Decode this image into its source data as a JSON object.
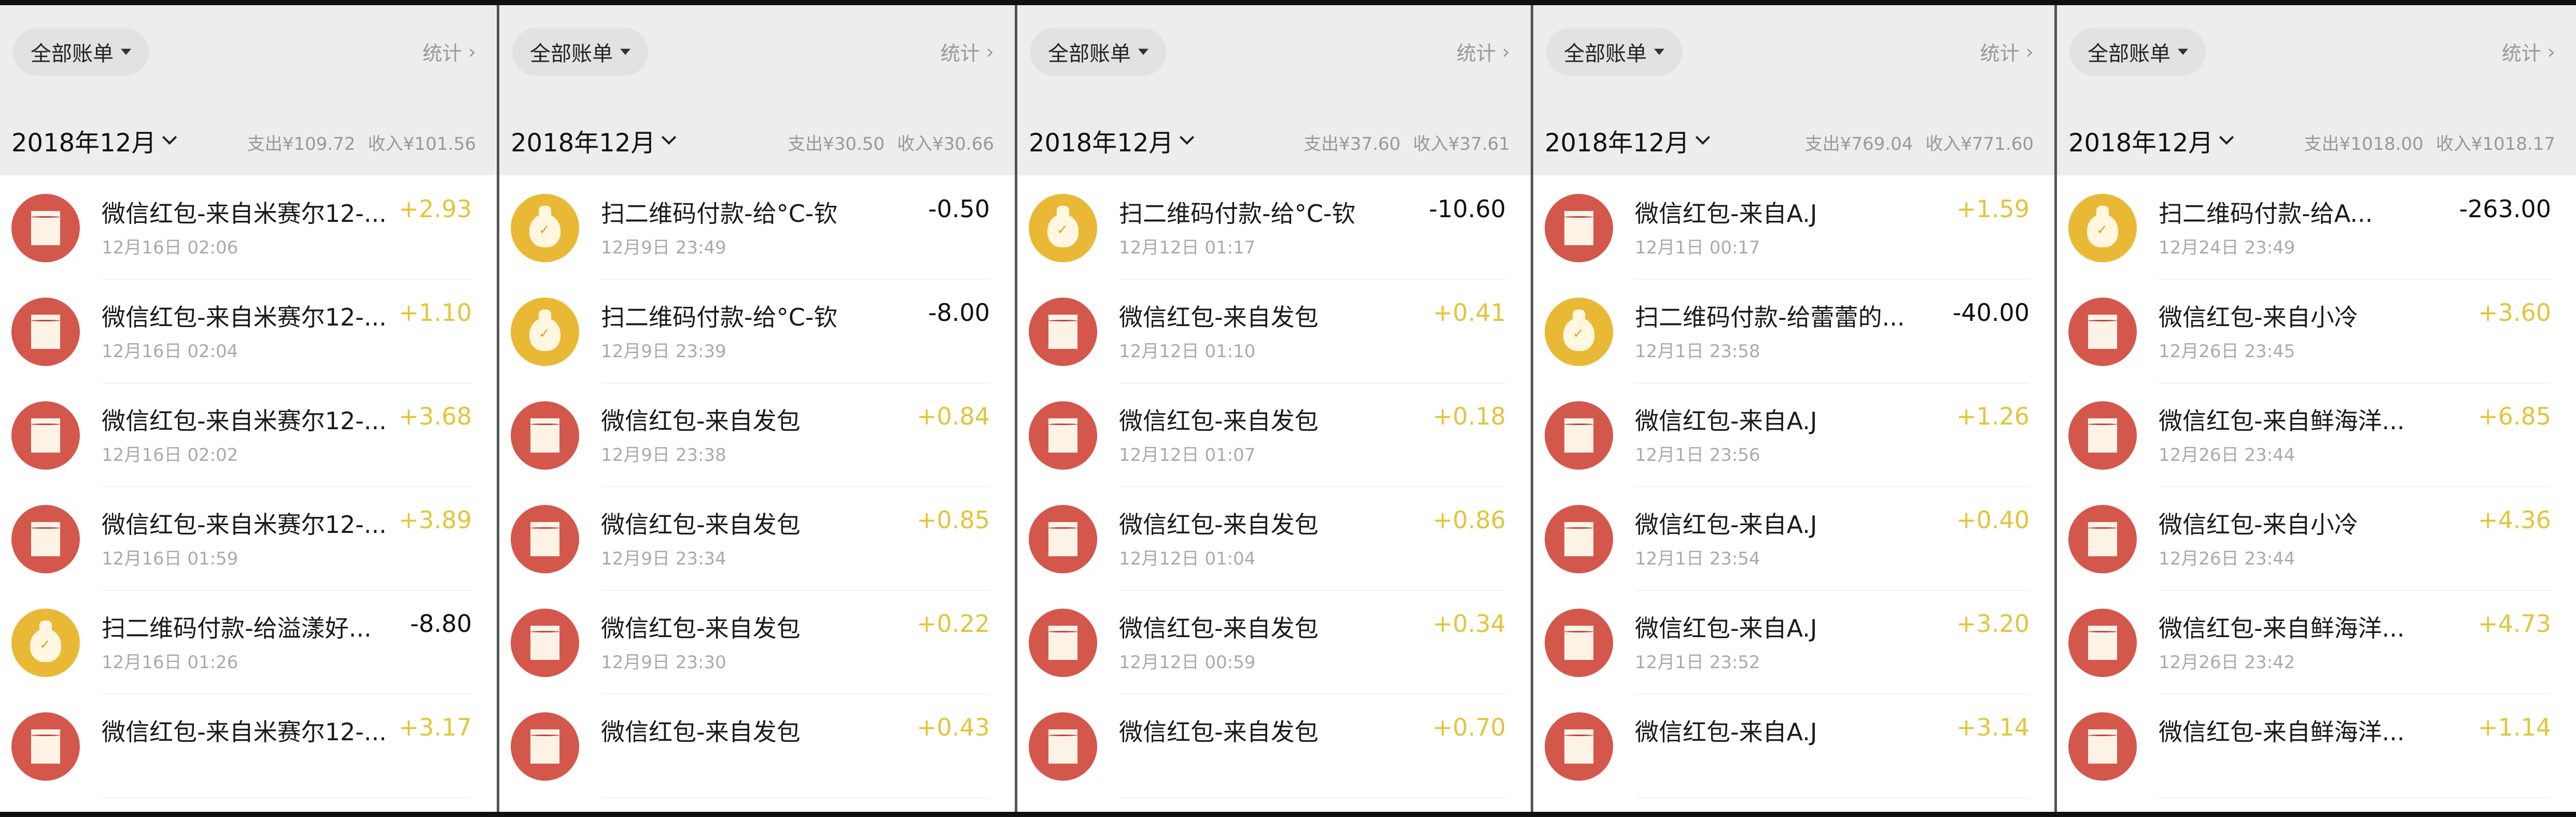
{
  "colors": {
    "red_packet": "#d4574c",
    "qr_payment": "#e9b936",
    "income": "#e3c53a",
    "expense": "#111111",
    "header_bg": "#ededed"
  },
  "panels": [
    {
      "filter_label": "全部账单",
      "stats_label": "统计",
      "month": "2018年12月",
      "expense": "支出¥109.72",
      "income": "收入¥101.56",
      "rows": [
        {
          "type": "red",
          "icon": "red-packet-icon",
          "title": "微信红包-来自米赛尔12-...",
          "date": "12月16日 02:06",
          "amount": "+2.93",
          "dir": "in"
        },
        {
          "type": "red",
          "icon": "red-packet-icon",
          "title": "微信红包-来自米赛尔12-...",
          "date": "12月16日 02:04",
          "amount": "+1.10",
          "dir": "in"
        },
        {
          "type": "red",
          "icon": "red-packet-icon",
          "title": "微信红包-来自米赛尔12-...",
          "date": "12月16日 02:02",
          "amount": "+3.68",
          "dir": "in"
        },
        {
          "type": "red",
          "icon": "red-packet-icon",
          "title": "微信红包-来自米赛尔12-...",
          "date": "12月16日 01:59",
          "amount": "+3.89",
          "dir": "in"
        },
        {
          "type": "yellow",
          "icon": "money-bag-icon",
          "title": "扫二维码付款-给溢漾好...",
          "date": "12月16日 01:26",
          "amount": "-8.80",
          "dir": "out"
        },
        {
          "type": "red",
          "icon": "red-packet-icon",
          "title": "微信红包-来自米赛尔12-...",
          "date": "",
          "amount": "+3.17",
          "dir": "in"
        }
      ]
    },
    {
      "filter_label": "全部账单",
      "stats_label": "统计",
      "month": "2018年12月",
      "expense": "支出¥30.50",
      "income": "收入¥30.66",
      "rows": [
        {
          "type": "yellow",
          "icon": "money-bag-icon",
          "title": "扫二维码付款-给°C-钦",
          "date": "12月9日 23:49",
          "amount": "-0.50",
          "dir": "out"
        },
        {
          "type": "yellow",
          "icon": "money-bag-icon",
          "title": "扫二维码付款-给°C-钦",
          "date": "12月9日 23:39",
          "amount": "-8.00",
          "dir": "out"
        },
        {
          "type": "red",
          "icon": "red-packet-icon",
          "title": "微信红包-来自发包",
          "date": "12月9日 23:38",
          "amount": "+0.84",
          "dir": "in"
        },
        {
          "type": "red",
          "icon": "red-packet-icon",
          "title": "微信红包-来自发包",
          "date": "12月9日 23:34",
          "amount": "+0.85",
          "dir": "in"
        },
        {
          "type": "red",
          "icon": "red-packet-icon",
          "title": "微信红包-来自发包",
          "date": "12月9日 23:30",
          "amount": "+0.22",
          "dir": "in"
        },
        {
          "type": "red",
          "icon": "red-packet-icon",
          "title": "微信红包-来自发包",
          "date": "",
          "amount": "+0.43",
          "dir": "in"
        }
      ]
    },
    {
      "filter_label": "全部账单",
      "stats_label": "统计",
      "month": "2018年12月",
      "expense": "支出¥37.60",
      "income": "收入¥37.61",
      "rows": [
        {
          "type": "yellow",
          "icon": "money-bag-icon",
          "title": "扫二维码付款-给°C-钦",
          "date": "12月12日 01:17",
          "amount": "-10.60",
          "dir": "out"
        },
        {
          "type": "red",
          "icon": "red-packet-icon",
          "title": "微信红包-来自发包",
          "date": "12月12日 01:10",
          "amount": "+0.41",
          "dir": "in"
        },
        {
          "type": "red",
          "icon": "red-packet-icon",
          "title": "微信红包-来自发包",
          "date": "12月12日 01:07",
          "amount": "+0.18",
          "dir": "in"
        },
        {
          "type": "red",
          "icon": "red-packet-icon",
          "title": "微信红包-来自发包",
          "date": "12月12日 01:04",
          "amount": "+0.86",
          "dir": "in"
        },
        {
          "type": "red",
          "icon": "red-packet-icon",
          "title": "微信红包-来自发包",
          "date": "12月12日 00:59",
          "amount": "+0.34",
          "dir": "in"
        },
        {
          "type": "red",
          "icon": "red-packet-icon",
          "title": "微信红包-来自发包",
          "date": "",
          "amount": "+0.70",
          "dir": "in"
        }
      ]
    },
    {
      "filter_label": "全部账单",
      "stats_label": "统计",
      "month": "2018年12月",
      "expense": "支出¥769.04",
      "income": "收入¥771.60",
      "rows": [
        {
          "type": "red",
          "icon": "red-packet-icon",
          "title": "微信红包-来自A.J",
          "date": "12月1日 00:17",
          "amount": "+1.59",
          "dir": "in"
        },
        {
          "type": "yellow",
          "icon": "money-bag-icon",
          "title": "扫二维码付款-给蕾蕾的...",
          "date": "12月1日 23:58",
          "amount": "-40.00",
          "dir": "out"
        },
        {
          "type": "red",
          "icon": "red-packet-icon",
          "title": "微信红包-来自A.J",
          "date": "12月1日 23:56",
          "amount": "+1.26",
          "dir": "in"
        },
        {
          "type": "red",
          "icon": "red-packet-icon",
          "title": "微信红包-来自A.J",
          "date": "12月1日 23:54",
          "amount": "+0.40",
          "dir": "in"
        },
        {
          "type": "red",
          "icon": "red-packet-icon",
          "title": "微信红包-来自A.J",
          "date": "12月1日 23:52",
          "amount": "+3.20",
          "dir": "in"
        },
        {
          "type": "red",
          "icon": "red-packet-icon",
          "title": "微信红包-来自A.J",
          "date": "",
          "amount": "+3.14",
          "dir": "in"
        }
      ]
    },
    {
      "filter_label": "全部账单",
      "stats_label": "统计",
      "month": "2018年12月",
      "expense": "支出¥1018.00",
      "income": "收入¥1018.17",
      "rows": [
        {
          "type": "yellow",
          "icon": "money-bag-icon",
          "title": "扫二维码付款-给A...",
          "date": "12月24日 23:49",
          "amount": "-263.00",
          "dir": "out"
        },
        {
          "type": "red",
          "icon": "red-packet-icon",
          "title": "微信红包-来自小冷",
          "date": "12月26日 23:45",
          "amount": "+3.60",
          "dir": "in"
        },
        {
          "type": "red",
          "icon": "red-packet-icon",
          "title": "微信红包-来自鲜海洋...",
          "date": "12月26日 23:44",
          "amount": "+6.85",
          "dir": "in"
        },
        {
          "type": "red",
          "icon": "red-packet-icon",
          "title": "微信红包-来自小冷",
          "date": "12月26日 23:44",
          "amount": "+4.36",
          "dir": "in"
        },
        {
          "type": "red",
          "icon": "red-packet-icon",
          "title": "微信红包-来自鲜海洋...",
          "date": "12月26日 23:42",
          "amount": "+4.73",
          "dir": "in"
        },
        {
          "type": "red",
          "icon": "red-packet-icon",
          "title": "微信红包-来自鲜海洋...",
          "date": "",
          "amount": "+1.14",
          "dir": "in"
        }
      ]
    }
  ]
}
